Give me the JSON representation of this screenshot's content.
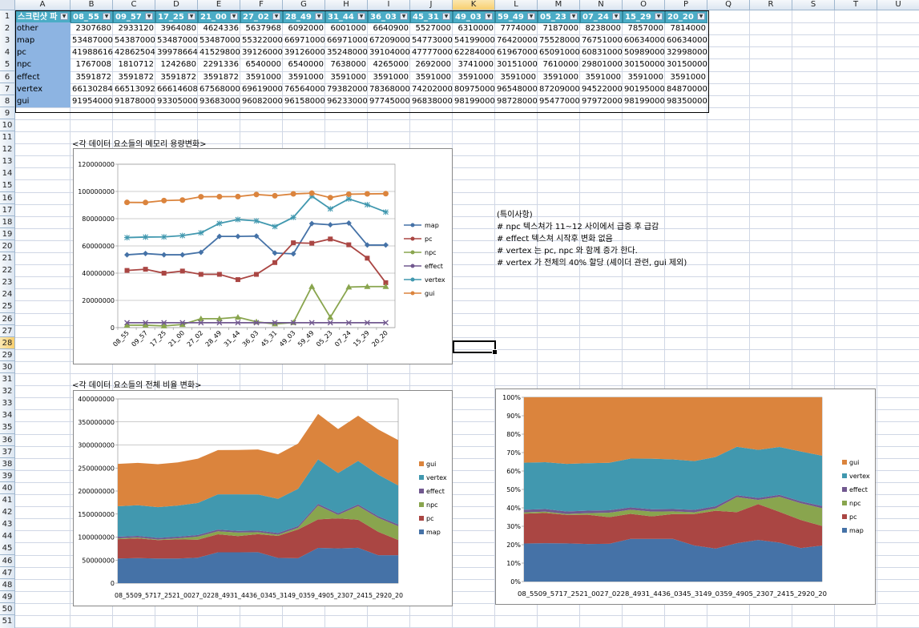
{
  "columns": [
    "A",
    "B",
    "C",
    "D",
    "E",
    "F",
    "G",
    "H",
    "I",
    "J",
    "K",
    "L",
    "M",
    "N",
    "O",
    "P",
    "Q",
    "R",
    "S",
    "T",
    "U"
  ],
  "selected_column": "K",
  "selected_row": 28,
  "row_count": 52,
  "table": {
    "headers": [
      "스크린샷 파",
      "08_55",
      "09_57",
      "17_25",
      "21_00",
      "27_02",
      "28_49",
      "31_44",
      "36_03",
      "45_31",
      "49_03",
      "59_49",
      "05_23",
      "07_24",
      "15_29",
      "20_20"
    ],
    "rows": [
      {
        "label": "other",
        "values": [
          "2307680",
          "2933120",
          "3964080",
          "4624336",
          "5637968",
          "6092000",
          "6001000",
          "6640900",
          "5527000",
          "6310000",
          "7774000",
          "7187000",
          "8238000",
          "7857000",
          "7814000"
        ]
      },
      {
        "label": "map",
        "values": [
          "53487000",
          "54387000",
          "53487000",
          "53487000",
          "55322000",
          "66971000",
          "66971000",
          "67209000",
          "54773000",
          "54199000",
          "76420000",
          "75528000",
          "76751000",
          "60634000",
          "60634000"
        ]
      },
      {
        "label": "pc",
        "values": [
          "41988616",
          "42862504",
          "39978664",
          "41529800",
          "39126000",
          "39126000",
          "35248000",
          "39104000",
          "47777000",
          "62284000",
          "61967000",
          "65091000",
          "60831000",
          "50989000",
          "32998000"
        ]
      },
      {
        "label": "npc",
        "values": [
          "1767008",
          "1810712",
          "1242680",
          "2291336",
          "6540000",
          "6540000",
          "7638000",
          "4265000",
          "2692000",
          "3741000",
          "30151000",
          "7610000",
          "29801000",
          "30150000",
          "30150000"
        ]
      },
      {
        "label": "effect",
        "values": [
          "3591872",
          "3591872",
          "3591872",
          "3591872",
          "3591000",
          "3591000",
          "3591000",
          "3591000",
          "3591000",
          "3591000",
          "3591000",
          "3591000",
          "3591000",
          "3591000",
          "3591000"
        ]
      },
      {
        "label": "vertex",
        "values": [
          "66130284",
          "66513092",
          "66614608",
          "67568000",
          "69619000",
          "76564000",
          "79382000",
          "78368000",
          "74202000",
          "80975000",
          "96548000",
          "87209000",
          "94522000",
          "90195000",
          "84870000"
        ]
      },
      {
        "label": "gui",
        "values": [
          "91954000",
          "91878000",
          "93305000",
          "93683000",
          "96082000",
          "96158000",
          "96233000",
          "97745000",
          "96838000",
          "98199000",
          "98728000",
          "95477000",
          "97972000",
          "98199000",
          "98350000"
        ]
      }
    ]
  },
  "captions": {
    "line": "<각 데이터 요소들의 메모리 용량변화>",
    "area": "<각 데이터 요소들의 전체 비율 변화>"
  },
  "notes": [
    "(특이사항)",
    "# npc 텍스쳐가 11~12 사이에서 급증 후 급감",
    "# effect 텍스쳐 시작후 변화 없음",
    "# vertex 는 pc, npc 와 함께 증가 한다.",
    "# vertex 가 전체의 40% 할당 (셰이더 관련, gui 제외)"
  ],
  "chart_data": [
    {
      "type": "line",
      "categories": [
        "08_55",
        "09_57",
        "17_25",
        "21_00",
        "27_02",
        "28_49",
        "31_44",
        "36_03",
        "45_31",
        "49_03",
        "59_49",
        "05_23",
        "07_24",
        "15_29",
        "20_20"
      ],
      "ylim": [
        0,
        120000000
      ],
      "yticks": [
        "0",
        "20000000",
        "40000000",
        "60000000",
        "80000000",
        "100000000",
        "120000000"
      ],
      "legend_position": "right",
      "series": [
        {
          "name": "map",
          "color": "#4572a7",
          "marker": "diamond",
          "values": [
            53487000,
            54387000,
            53487000,
            53487000,
            55322000,
            66971000,
            66971000,
            67209000,
            54773000,
            54199000,
            76420000,
            75528000,
            76751000,
            60634000,
            60634000
          ]
        },
        {
          "name": "pc",
          "color": "#aa4643",
          "marker": "square",
          "values": [
            41988616,
            42862504,
            39978664,
            41529800,
            39126000,
            39126000,
            35248000,
            39104000,
            47777000,
            62284000,
            61967000,
            65091000,
            60831000,
            50989000,
            32998000
          ]
        },
        {
          "name": "npc",
          "color": "#89a54e",
          "marker": "triangle",
          "values": [
            1767008,
            1810712,
            1242680,
            2291336,
            6540000,
            6540000,
            7638000,
            4265000,
            2692000,
            3741000,
            30151000,
            7610000,
            29801000,
            30150000,
            30150000
          ]
        },
        {
          "name": "effect",
          "color": "#71588f",
          "marker": "x",
          "values": [
            3591872,
            3591872,
            3591872,
            3591872,
            3591000,
            3591000,
            3591000,
            3591000,
            3591000,
            3591000,
            3591000,
            3591000,
            3591000,
            3591000,
            3591000
          ]
        },
        {
          "name": "vertex",
          "color": "#4198af",
          "marker": "star",
          "values": [
            66130284,
            66513092,
            66614608,
            67568000,
            69619000,
            76564000,
            79382000,
            78368000,
            74202000,
            80975000,
            96548000,
            87209000,
            94522000,
            90195000,
            84870000
          ]
        },
        {
          "name": "gui",
          "color": "#db843d",
          "marker": "circle",
          "values": [
            91954000,
            91878000,
            93305000,
            93683000,
            96082000,
            96158000,
            96233000,
            97745000,
            96838000,
            98199000,
            98728000,
            95477000,
            97972000,
            98199000,
            98350000
          ]
        }
      ]
    },
    {
      "type": "area",
      "stacked": true,
      "categories": [
        "08_55",
        "09_57",
        "17_25",
        "21_00",
        "27_02",
        "28_49",
        "31_44",
        "36_03",
        "45_31",
        "49_03",
        "59_49",
        "05_23",
        "07_24",
        "15_29",
        "20_20"
      ],
      "ylim": [
        0,
        400000000
      ],
      "yticks": [
        "0",
        "50000000",
        "100000000",
        "150000000",
        "200000000",
        "250000000",
        "300000000",
        "350000000",
        "400000000"
      ],
      "legend_position": "right",
      "series_order": [
        "map",
        "pc",
        "npc",
        "effect",
        "vertex",
        "gui"
      ]
    },
    {
      "type": "area",
      "stacked": true,
      "percent": true,
      "categories": [
        "08_55",
        "09_57",
        "17_25",
        "21_00",
        "27_02",
        "28_49",
        "31_44",
        "36_03",
        "45_31",
        "49_03",
        "59_49",
        "05_23",
        "07_24",
        "15_29",
        "20_20"
      ],
      "ylim": [
        0,
        100
      ],
      "yticks": [
        "0%",
        "10%",
        "20%",
        "30%",
        "40%",
        "50%",
        "60%",
        "70%",
        "80%",
        "90%",
        "100%"
      ],
      "legend_position": "right",
      "series_order": [
        "map",
        "pc",
        "npc",
        "effect",
        "vertex",
        "gui"
      ]
    }
  ]
}
